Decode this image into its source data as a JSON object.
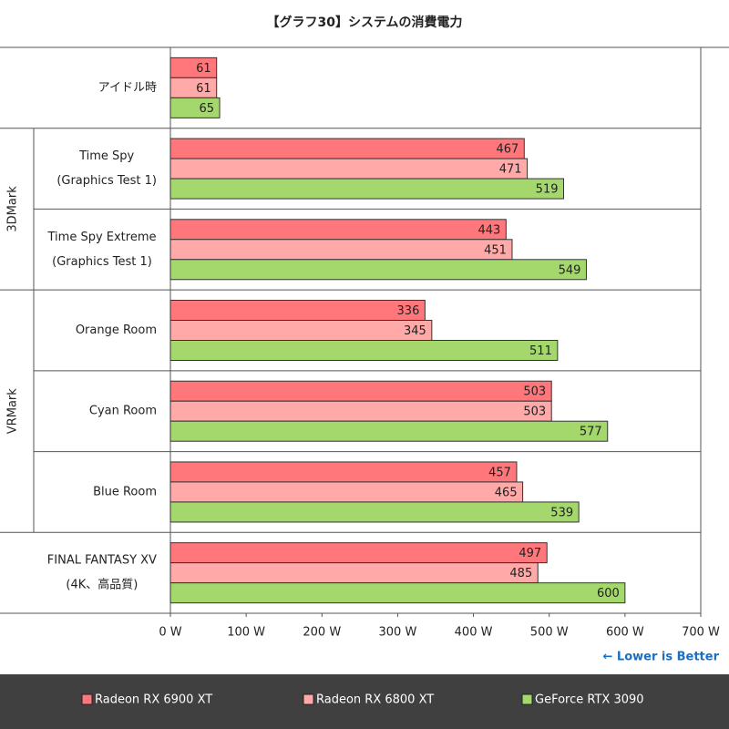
{
  "chart_data": {
    "type": "bar",
    "orientation": "horizontal",
    "title": "【グラフ30】システムの消費電力",
    "categories": [
      [
        "アイドル時"
      ],
      [
        "Time Spy",
        "(Graphics Test 1)"
      ],
      [
        "Time Spy Extreme",
        "(Graphics Test 1)"
      ],
      [
        "Orange Room"
      ],
      [
        "Cyan Room"
      ],
      [
        "Blue Room"
      ],
      [
        "FINAL FANTASY XV",
        "(4K、高品質)"
      ]
    ],
    "category_groups": [
      null,
      "3DMark",
      "3DMark",
      "VRMark",
      "VRMark",
      "VRMark",
      null
    ],
    "series": [
      {
        "name": "Radeon RX 6900 XT",
        "color": "#ff777a",
        "values": [
          61,
          467,
          443,
          336,
          503,
          457,
          497
        ]
      },
      {
        "name": "Radeon RX 6800 XT",
        "color": "#ffa9a9",
        "values": [
          61,
          471,
          451,
          345,
          503,
          465,
          485
        ]
      },
      {
        "name": "GeForce RTX 3090",
        "color": "#a5d86c",
        "values": [
          65,
          519,
          549,
          511,
          577,
          539,
          600
        ]
      }
    ],
    "xlim": [
      0,
      700
    ],
    "xticks": [
      {
        "value": 0,
        "label": "0 W"
      },
      {
        "value": 100,
        "label": "100 W"
      },
      {
        "value": 200,
        "label": "200 W"
      },
      {
        "value": 300,
        "label": "300 W"
      },
      {
        "value": 400,
        "label": "400 W"
      },
      {
        "value": 500,
        "label": "500 W"
      },
      {
        "value": 600,
        "label": "600 W"
      },
      {
        "value": 700,
        "label": "700 W"
      }
    ],
    "annotation": "← Lower is Better",
    "legend_position": "bottom"
  }
}
